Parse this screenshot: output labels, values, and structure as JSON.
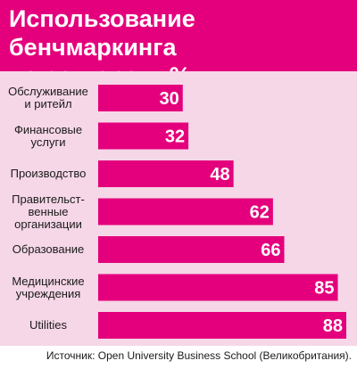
{
  "title": "Использование бенчмаркинга\nпо секторам, %",
  "source": "Источник: Open University Business School (Великобритания).",
  "colors": {
    "header": "#e4007c",
    "bar": "#e4007c",
    "panel": "#f6d7e7",
    "value_text": "#ffffff"
  },
  "chart_data": {
    "type": "bar",
    "orientation": "horizontal",
    "title": "Использование бенчмаркинга по секторам, %",
    "categories": [
      "Обслуживание\nи ритейл",
      "Финансовые\nуслуги",
      "Производство",
      "Правительст-\nвенные\nорганизации",
      "Образование",
      "Медицинские\nучреждения",
      "Utilities"
    ],
    "values": [
      30,
      32,
      48,
      62,
      66,
      85,
      88
    ],
    "xlim": [
      0,
      88
    ],
    "grid": false,
    "legend": "none"
  }
}
